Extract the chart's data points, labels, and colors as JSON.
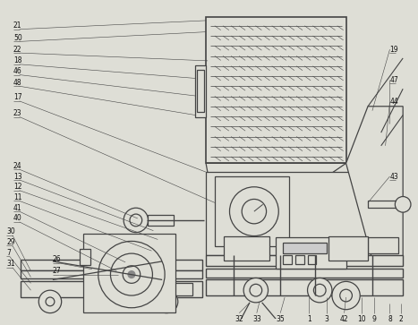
{
  "bg_color": "#deded6",
  "line_color": "#444444",
  "lw": 0.9,
  "fig_w": 4.67,
  "fig_h": 3.63,
  "dpi": 100,
  "label_fs": 5.5,
  "label_color": "#111111"
}
